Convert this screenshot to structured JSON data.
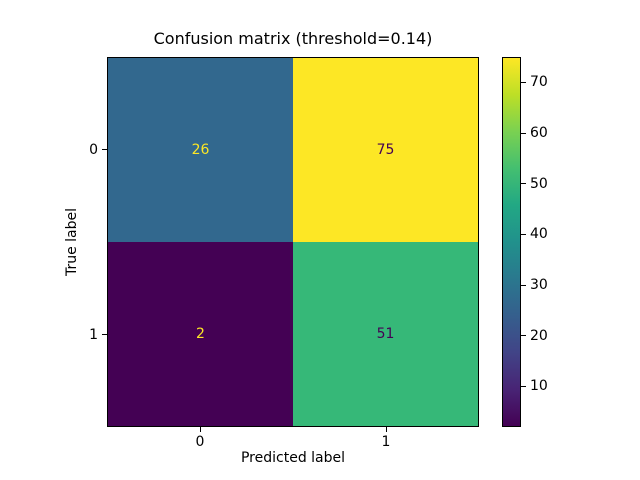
{
  "figure": {
    "background": "#ffffff"
  },
  "chart_data": {
    "type": "heatmap",
    "title": "Confusion matrix (threshold=0.14)",
    "xlabel": "Predicted label",
    "ylabel": "True label",
    "x_ticks": [
      "0",
      "1"
    ],
    "y_ticks": [
      "0",
      "1"
    ],
    "matrix": [
      [
        26,
        75
      ],
      [
        2,
        51
      ]
    ],
    "cell_colors": [
      [
        "#32688e",
        "#fde725"
      ],
      [
        "#440154",
        "#36b878"
      ]
    ],
    "cell_text_colors": [
      [
        "#fde725",
        "#440154"
      ],
      [
        "#fde725",
        "#440154"
      ]
    ],
    "colormap": "viridis",
    "colorbar": {
      "vmin": 2,
      "vmax": 75,
      "ticks": [
        10,
        20,
        30,
        40,
        50,
        60,
        70
      ],
      "gradient": [
        "#440154",
        "#482475",
        "#414487",
        "#355f8d",
        "#2a788e",
        "#21918c",
        "#22a884",
        "#44bf70",
        "#7ad151",
        "#bddf26",
        "#fde725"
      ]
    },
    "grid": false,
    "legend": "colorbar-right"
  }
}
